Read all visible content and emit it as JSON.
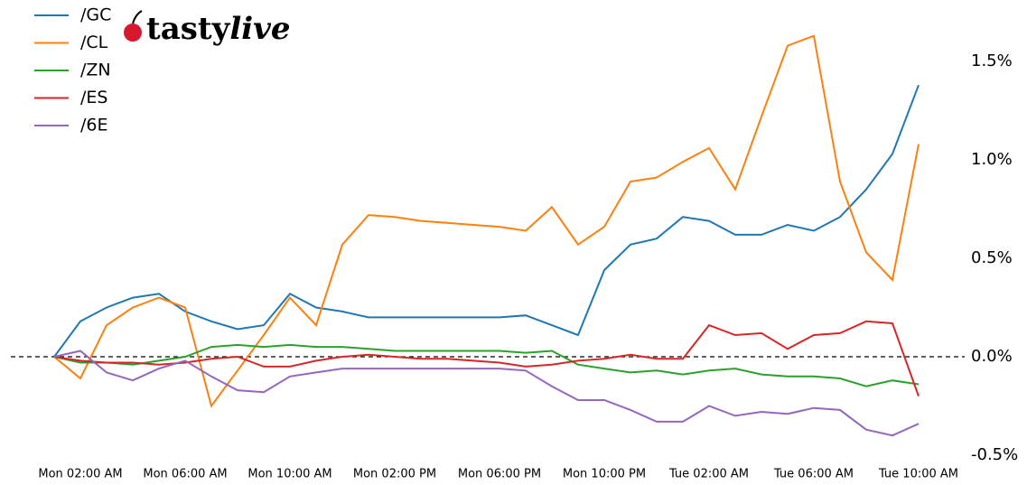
{
  "chart_data": {
    "type": "line",
    "logo": [
      "tasty",
      "live"
    ],
    "x": [
      "Mon 01:00 AM",
      "Mon 02:00 AM",
      "Mon 03:00 AM",
      "Mon 04:00 AM",
      "Mon 05:00 AM",
      "Mon 06:00 AM",
      "Mon 07:00 AM",
      "Mon 08:00 AM",
      "Mon 09:00 AM",
      "Mon 10:00 AM",
      "Mon 11:00 AM",
      "Mon 12:00 PM",
      "Mon 01:00 PM",
      "Mon 02:00 PM",
      "Mon 03:00 PM",
      "Mon 04:00 PM",
      "Mon 05:00 PM",
      "Mon 06:00 PM",
      "Mon 07:00 PM",
      "Mon 08:00 PM",
      "Mon 09:00 PM",
      "Mon 10:00 PM",
      "Mon 11:00 PM",
      "Tue 12:00 AM",
      "Tue 01:00 AM",
      "Tue 02:00 AM",
      "Tue 03:00 AM",
      "Tue 04:00 AM",
      "Tue 05:00 AM",
      "Tue 06:00 AM",
      "Tue 07:00 AM",
      "Tue 08:00 AM",
      "Tue 09:00 AM",
      "Tue 10:00 AM"
    ],
    "series": [
      {
        "name": "/GC",
        "color": "#1f77b4",
        "values": [
          0,
          0.18,
          0.25,
          0.3,
          0.32,
          0.23,
          0.18,
          0.14,
          0.16,
          0.32,
          0.25,
          0.23,
          0.2,
          0.2,
          0.2,
          0.2,
          0.2,
          0.2,
          0.21,
          0.16,
          0.11,
          0.44,
          0.57,
          0.6,
          0.71,
          0.69,
          0.62,
          0.62,
          0.67,
          0.64,
          0.71,
          0.85,
          1.03,
          1.38
        ]
      },
      {
        "name": "/CL",
        "color": "#ff7f0e",
        "values": [
          0,
          -0.11,
          0.16,
          0.25,
          0.3,
          0.25,
          -0.25,
          -0.07,
          0.11,
          0.3,
          0.16,
          0.57,
          0.72,
          0.71,
          0.69,
          0.68,
          0.67,
          0.66,
          0.64,
          0.76,
          0.57,
          0.66,
          0.89,
          0.91,
          0.99,
          1.06,
          0.85,
          1.22,
          1.58,
          1.63,
          0.89,
          0.53,
          0.39,
          1.08
        ]
      },
      {
        "name": "/ZN",
        "color": "#2ca02c",
        "values": [
          0,
          -0.03,
          -0.03,
          -0.04,
          -0.02,
          0,
          0.05,
          0.06,
          0.05,
          0.06,
          0.05,
          0.05,
          0.04,
          0.03,
          0.03,
          0.03,
          0.03,
          0.03,
          0.02,
          0.03,
          -0.04,
          -0.06,
          -0.08,
          -0.07,
          -0.09,
          -0.07,
          -0.06,
          -0.09,
          -0.1,
          -0.1,
          -0.11,
          -0.15,
          -0.12,
          -0.14
        ]
      },
      {
        "name": "/ES",
        "color": "#d62728",
        "values": [
          0,
          -0.02,
          -0.03,
          -0.03,
          -0.04,
          -0.03,
          -0.01,
          0,
          -0.05,
          -0.05,
          -0.02,
          0,
          0.01,
          0,
          -0.01,
          -0.01,
          -0.02,
          -0.03,
          -0.05,
          -0.04,
          -0.02,
          -0.01,
          0.01,
          -0.01,
          -0.01,
          0.16,
          0.11,
          0.12,
          0.04,
          0.11,
          0.12,
          0.18,
          0.17,
          -0.2
        ]
      },
      {
        "name": "/6E",
        "color": "#9467bd",
        "values": [
          0,
          0.03,
          -0.08,
          -0.12,
          -0.06,
          -0.02,
          -0.1,
          -0.17,
          -0.18,
          -0.1,
          -0.08,
          -0.06,
          -0.06,
          -0.06,
          -0.06,
          -0.06,
          -0.06,
          -0.06,
          -0.07,
          -0.15,
          -0.22,
          -0.22,
          -0.27,
          -0.33,
          -0.33,
          -0.25,
          -0.3,
          -0.28,
          -0.29,
          -0.26,
          -0.27,
          -0.37,
          -0.4,
          -0.34
        ]
      }
    ],
    "xlim": [
      "Mon 01:00 AM",
      "Tue 10:00 AM"
    ],
    "xticks": [
      "Mon 02:00 AM",
      "Mon 06:00 AM",
      "Mon 10:00 AM",
      "Mon 02:00 PM",
      "Mon 06:00 PM",
      "Mon 10:00 PM",
      "Tue 02:00 AM",
      "Tue 06:00 AM",
      "Tue 10:00 AM"
    ],
    "ylim": [
      -0.5,
      1.78
    ],
    "yticks": [
      {
        "value": -0.5,
        "label": "-0.5%"
      },
      {
        "value": 0,
        "label": "0.0%"
      },
      {
        "value": 0.5,
        "label": "0.5%"
      },
      {
        "value": 1.0,
        "label": "1.0%"
      },
      {
        "value": 1.5,
        "label": "1.5%"
      }
    ],
    "hline": 0,
    "legend": "upper left"
  }
}
